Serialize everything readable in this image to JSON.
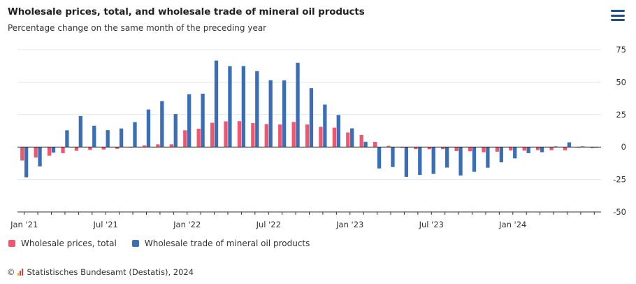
{
  "title": "Wholesale prices, total, and wholesale trade of mineral oil products",
  "subtitle": "Percentage change on the same month of the preceding year",
  "credit": {
    "symbol": "©",
    "text": "Statistisches Bundesamt (Destatis), 2024"
  },
  "menu_icon": "hamburger-menu-icon",
  "colors": {
    "total": "#f0566e",
    "mineral": "#3a6fb7",
    "grid": "#e6e6e6",
    "axis": "#333333",
    "menu": "#1f4f85"
  },
  "chart_data": {
    "type": "bar",
    "title": "Wholesale prices, total, and wholesale trade of mineral oil products",
    "subtitle": "Percentage change on the same month of the preceding year",
    "ylabel": "",
    "xlabel": "",
    "ylim": [
      -50,
      75
    ],
    "yticks": [
      75,
      50,
      25,
      0,
      -25,
      -50
    ],
    "ytick_labels": [
      "75",
      "50",
      "25",
      "0",
      "-25",
      "-50"
    ],
    "y_axis_side": "right",
    "grid": true,
    "legend_position": "bottom-left",
    "categories": [
      "2021-01",
      "2021-02",
      "2021-03",
      "2021-04",
      "2021-05",
      "2021-06",
      "2021-07",
      "2021-08",
      "2021-09",
      "2021-10",
      "2021-11",
      "2021-12",
      "2022-01",
      "2022-02",
      "2022-03",
      "2022-04",
      "2022-05",
      "2022-06",
      "2022-07",
      "2022-08",
      "2022-09",
      "2022-10",
      "2022-11",
      "2022-12",
      "2023-01",
      "2023-02",
      "2023-03",
      "2023-04",
      "2023-05",
      "2023-06",
      "2023-07",
      "2023-08",
      "2023-09",
      "2023-10",
      "2023-11",
      "2023-12",
      "2024-01",
      "2024-02",
      "2024-03",
      "2024-04",
      "2024-05",
      "2024-06",
      "2024-07"
    ],
    "xtick_labels": [
      {
        "index": 0,
        "label": "Jan '21"
      },
      {
        "index": 6,
        "label": "Jul '21"
      },
      {
        "index": 12,
        "label": "Jan '22"
      },
      {
        "index": 18,
        "label": "Jul '22"
      },
      {
        "index": 24,
        "label": "Jan '23"
      },
      {
        "index": 30,
        "label": "Jul '23"
      },
      {
        "index": 36,
        "label": "Jan '24"
      }
    ],
    "series": [
      {
        "name": "Wholesale prices, total",
        "color": "#f0566e",
        "values": [
          -10.4,
          -8.1,
          -6.7,
          -4.7,
          -2.9,
          -2.3,
          -1.9,
          -1.4,
          -0.5,
          1.3,
          2.1,
          2.1,
          12.9,
          14.1,
          18.7,
          19.8,
          19.9,
          18.4,
          17.7,
          17.4,
          19.3,
          17.4,
          15.6,
          14.9,
          11.2,
          9.3,
          3.9,
          0.9,
          -0.6,
          -1.6,
          -1.7,
          -1.6,
          -3.1,
          -3.3,
          -4.0,
          -3.6,
          -2.7,
          -2.8,
          -2.4,
          -2.4,
          -2.5,
          -0.5,
          -0.8
        ]
      },
      {
        "name": "Wholesale trade of mineral oil products",
        "color": "#3a6fb7",
        "values": [
          -23.3,
          -14.9,
          -4.3,
          12.9,
          23.9,
          16.4,
          13.0,
          14.3,
          19.2,
          28.9,
          35.4,
          25.4,
          40.7,
          41.1,
          66.6,
          62.3,
          62.4,
          58.5,
          51.5,
          51.4,
          64.9,
          45.3,
          32.7,
          24.7,
          14.4,
          4.0,
          -16.5,
          -15.4,
          -23.0,
          -21.5,
          -20.7,
          -15.8,
          -21.9,
          -19.1,
          -15.9,
          -11.8,
          -8.7,
          -4.7,
          -4.0,
          0.5,
          3.6,
          0.5,
          -0.5
        ]
      }
    ]
  }
}
